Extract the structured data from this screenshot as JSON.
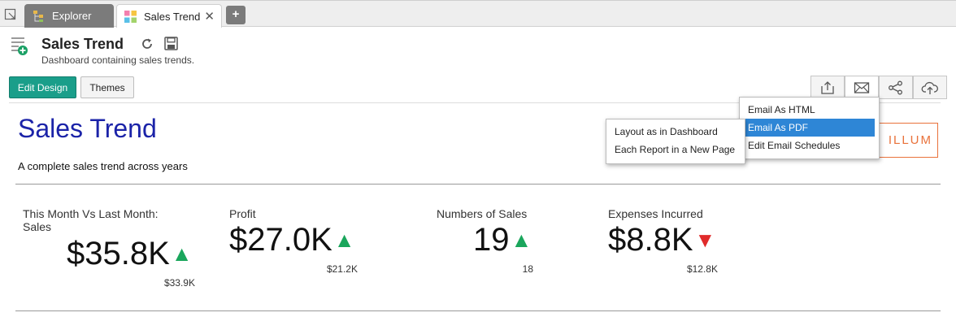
{
  "tabs": {
    "explorer_label": "Explorer",
    "active_label": "Sales Trend",
    "close_glyph": "✕",
    "add_glyph": "+"
  },
  "header": {
    "title": "Sales Trend",
    "subtitle": "Dashboard containing sales trends."
  },
  "toolbar": {
    "edit_design_label": "Edit Design",
    "themes_label": "Themes",
    "icons": [
      "export-icon",
      "email-icon",
      "share-icon",
      "upload-cloud-icon"
    ]
  },
  "dashboard": {
    "title": "Sales Trend",
    "description": "A complete sales trend across years",
    "logo_text": "ILLUM",
    "kpis": [
      {
        "label_line1": "This Month Vs Last Month:",
        "label_line2": "Sales",
        "value": "$35.8K",
        "trend": "up",
        "arrow": "▲",
        "previous": "$33.9K"
      },
      {
        "label_line1": "Profit",
        "label_line2": "",
        "value": "$27.0K",
        "trend": "up",
        "arrow": "▲",
        "previous": "$21.2K"
      },
      {
        "label_line1": "Numbers of Sales",
        "label_line2": "",
        "value": "19",
        "trend": "up",
        "arrow": "▲",
        "previous": "18"
      },
      {
        "label_line1": "Expenses Incurred",
        "label_line2": "",
        "value": "$8.8K",
        "trend": "down",
        "arrow": "▼",
        "previous": "$12.8K"
      }
    ]
  },
  "email_menu": {
    "items": [
      "Email As HTML",
      "Email As PDF",
      "Edit Email Schedules"
    ],
    "selected": "Email As PDF"
  },
  "pdf_submenu": {
    "items": [
      "Layout as in Dashboard",
      "Each Report in a New Page"
    ]
  },
  "colors": {
    "accent": "#1a9e8a",
    "title_blue": "#1b23a8",
    "up": "#1aa65c",
    "down": "#e02b2b",
    "menu_highlight": "#2e86d6",
    "logo_orange": "#e9723b"
  }
}
